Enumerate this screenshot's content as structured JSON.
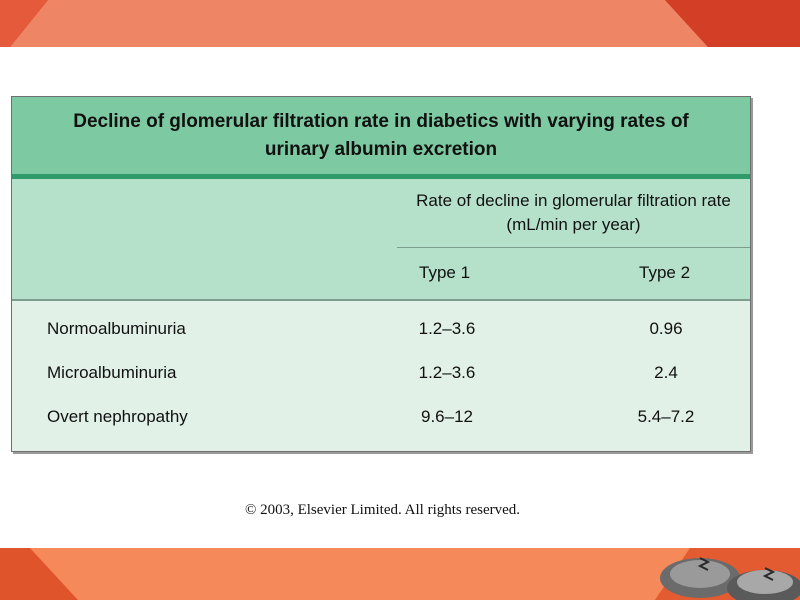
{
  "colors": {
    "banner_orange": "#f08060",
    "banner_red": "#d84428",
    "title_green": "#7dc9a2",
    "title_rule": "#2f9a6a",
    "header_green": "#b5e1cb",
    "body_green": "#e1f1e8"
  },
  "table": {
    "title": "Decline of glomerular filtration rate in diabetics with varying rates of urinary albumin excretion",
    "column_group": "Rate of decline in glomerular filtration rate (mL/min per year)",
    "columns": [
      "Type 1",
      "Type 2"
    ],
    "rows": [
      {
        "label": "Normoalbuminuria",
        "type1": "1.2–3.6",
        "type2": "0.96"
      },
      {
        "label": "Microalbuminuria",
        "type1": "1.2–3.6",
        "type2": "2.4"
      },
      {
        "label": "Overt nephropathy",
        "type1": "9.6–12",
        "type2": "5.4–7.2"
      }
    ]
  },
  "copyright": "© 2003, Elsevier Limited. All rights reserved."
}
